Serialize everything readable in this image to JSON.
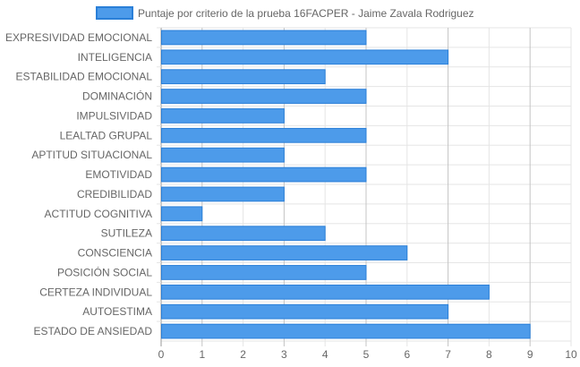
{
  "chart_data": {
    "type": "bar",
    "orientation": "horizontal",
    "categories": [
      "EXPRESIVIDAD EMOCIONAL",
      "INTELIGENCIA",
      "ESTABILIDAD EMOCIONAL",
      "DOMINACIÓN",
      "IMPULSIVIDAD",
      "LEALTAD GRUPAL",
      "APTITUD SITUACIONAL",
      "EMOTIVIDAD",
      "CREDIBILIDAD",
      "ACTITUD COGNITIVA",
      "SUTILEZA",
      "CONSCIENCIA",
      "POSICIÓN SOCIAL",
      "CERTEZA INDIVIDUAL",
      "AUTOESTIMA",
      "ESTADO DE ANSIEDAD"
    ],
    "series": [
      {
        "name": "Puntaje por criterio de la prueba 16FACPER - Jaime Zavala Rodriguez",
        "values": [
          5,
          7,
          4,
          5,
          3,
          5,
          3,
          5,
          3,
          1,
          4,
          6,
          5,
          8,
          7,
          9
        ]
      }
    ],
    "xticks": [
      "0",
      "1",
      "2",
      "3",
      "4",
      "5",
      "6",
      "7",
      "8",
      "9",
      "10"
    ],
    "xlim": [
      0,
      10
    ],
    "grid": true,
    "legend": "top-center",
    "colors": {
      "bar_fill": "#4d9bea",
      "bar_stroke": "#2a7fd8",
      "grid": "#e5e5e5",
      "axis": "#999999"
    }
  }
}
